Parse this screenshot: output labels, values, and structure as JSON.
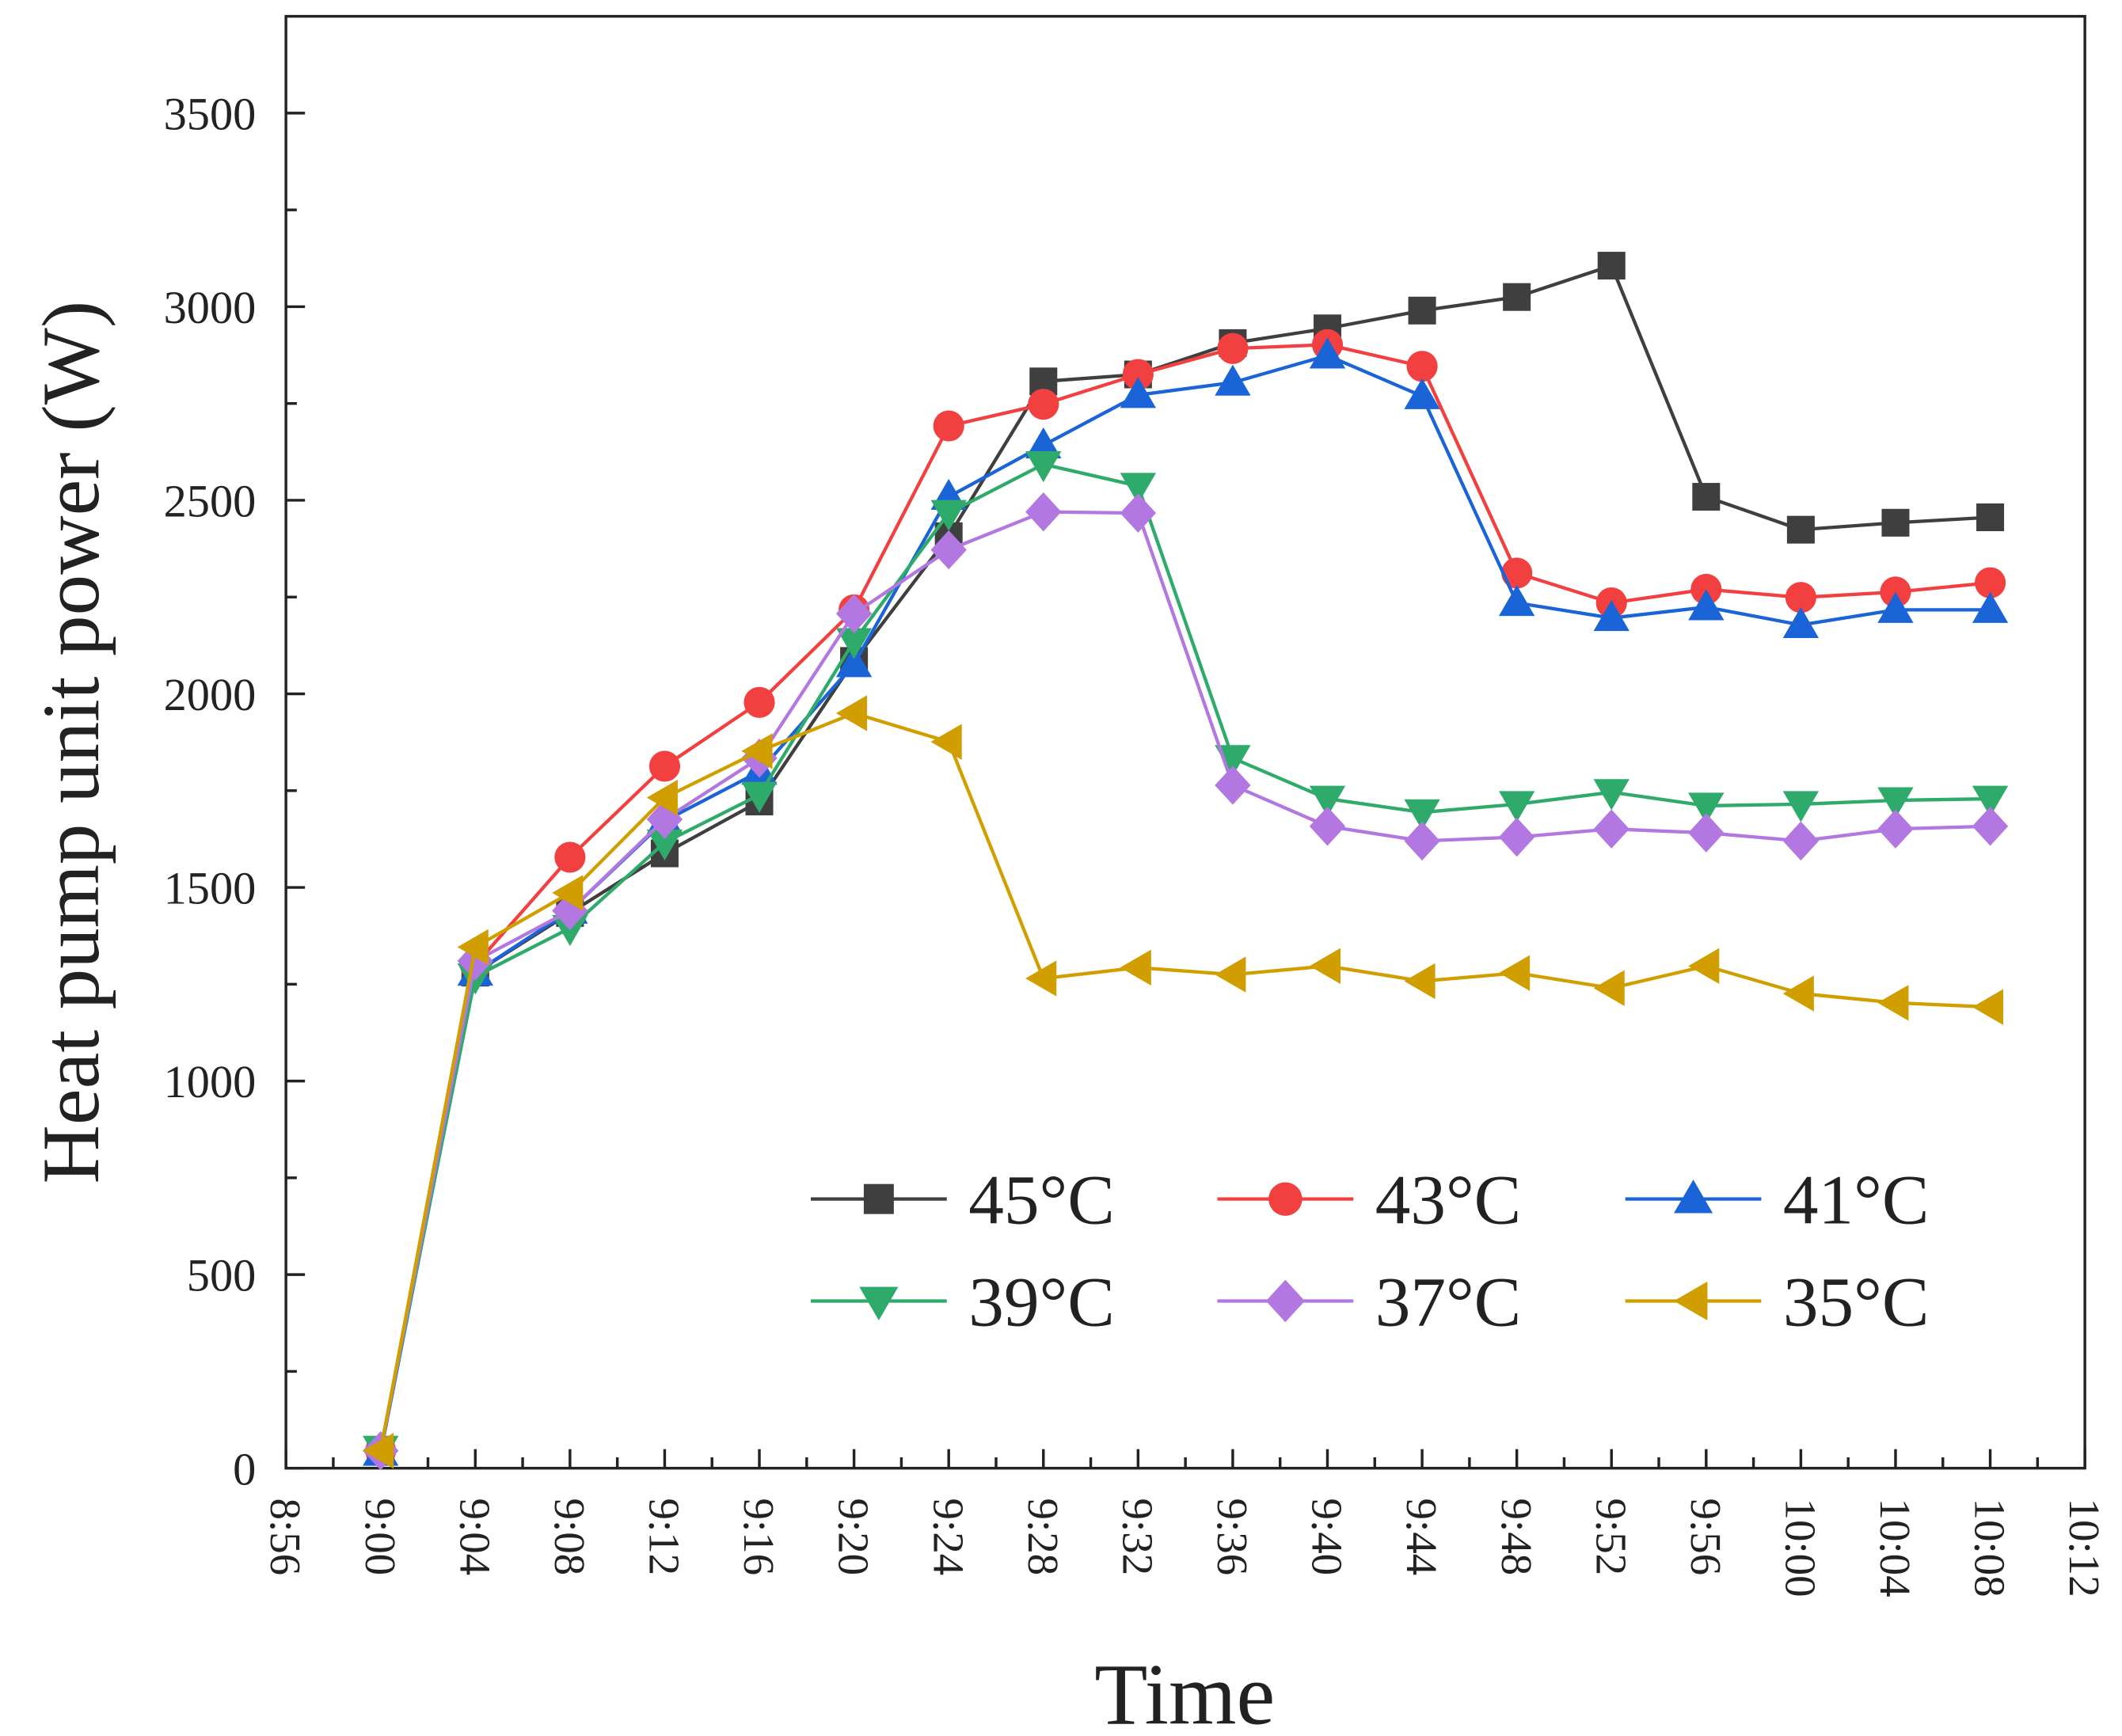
{
  "chart_data": {
    "type": "line",
    "title": "",
    "xlabel": "Time",
    "ylabel": "Heat pump unit power (W)",
    "ylim": [
      0,
      3750
    ],
    "yticks": [
      0,
      500,
      1000,
      1500,
      2000,
      2500,
      3000,
      3500
    ],
    "xticks": [
      "8:56",
      "9:00",
      "9:04",
      "9:08",
      "9:12",
      "9:16",
      "9:20",
      "9:24",
      "9:28",
      "9:32",
      "9:36",
      "9:40",
      "9:44",
      "9:48",
      "9:52",
      "9:56",
      "10:00",
      "10:04",
      "10:08",
      "10:12"
    ],
    "x": [
      "9:00",
      "9:04",
      "9:08",
      "9:12",
      "9:16",
      "9:20",
      "9:24",
      "9:28",
      "9:32",
      "9:36",
      "9:40",
      "9:44",
      "9:48",
      "9:52",
      "9:56",
      "10:00",
      "10:04",
      "10:08"
    ],
    "legend_position": "lower-right",
    "series": [
      {
        "name": "45°C",
        "color": "#3f3f3f",
        "marker": "square",
        "values": [
          45,
          1280,
          1434,
          1588,
          1722,
          2085,
          2407,
          2807,
          2825,
          2906,
          2944,
          2990,
          3025,
          3106,
          2509,
          2424,
          2442,
          2456
        ]
      },
      {
        "name": "43°C",
        "color": "#f24040",
        "marker": "circle",
        "values": [
          45,
          1300,
          1578,
          1813,
          1978,
          2217,
          2692,
          2748,
          2825,
          2892,
          2902,
          2846,
          2312,
          2235,
          2270,
          2249,
          2263,
          2287
        ]
      },
      {
        "name": "41°C",
        "color": "#1a64d8",
        "marker": "triangle-up",
        "values": [
          40,
          1280,
          1440,
          1672,
          1799,
          2077,
          2509,
          2642,
          2772,
          2804,
          2874,
          2769,
          2235,
          2196,
          2224,
          2178,
          2217,
          2217
        ]
      },
      {
        "name": "39°C",
        "color": "#2eaa6a",
        "marker": "triangle-down",
        "values": [
          50,
          1270,
          1395,
          1616,
          1739,
          2136,
          2467,
          2593,
          2537,
          1834,
          1729,
          1694,
          1715,
          1746,
          1711,
          1715,
          1725,
          1729
        ]
      },
      {
        "name": "37°C",
        "color": "#b277e0",
        "marker": "diamond",
        "values": [
          45,
          1310,
          1440,
          1676,
          1834,
          2207,
          2372,
          2470,
          2467,
          1764,
          1658,
          1620,
          1630,
          1651,
          1641,
          1620,
          1651,
          1658
        ]
      },
      {
        "name": "35°C",
        "color": "#d19e00",
        "marker": "triangle-left",
        "values": [
          45,
          1346,
          1486,
          1732,
          1852,
          1950,
          1876,
          1265,
          1293,
          1275,
          1297,
          1258,
          1279,
          1240,
          1297,
          1226,
          1202,
          1191
        ]
      }
    ]
  }
}
